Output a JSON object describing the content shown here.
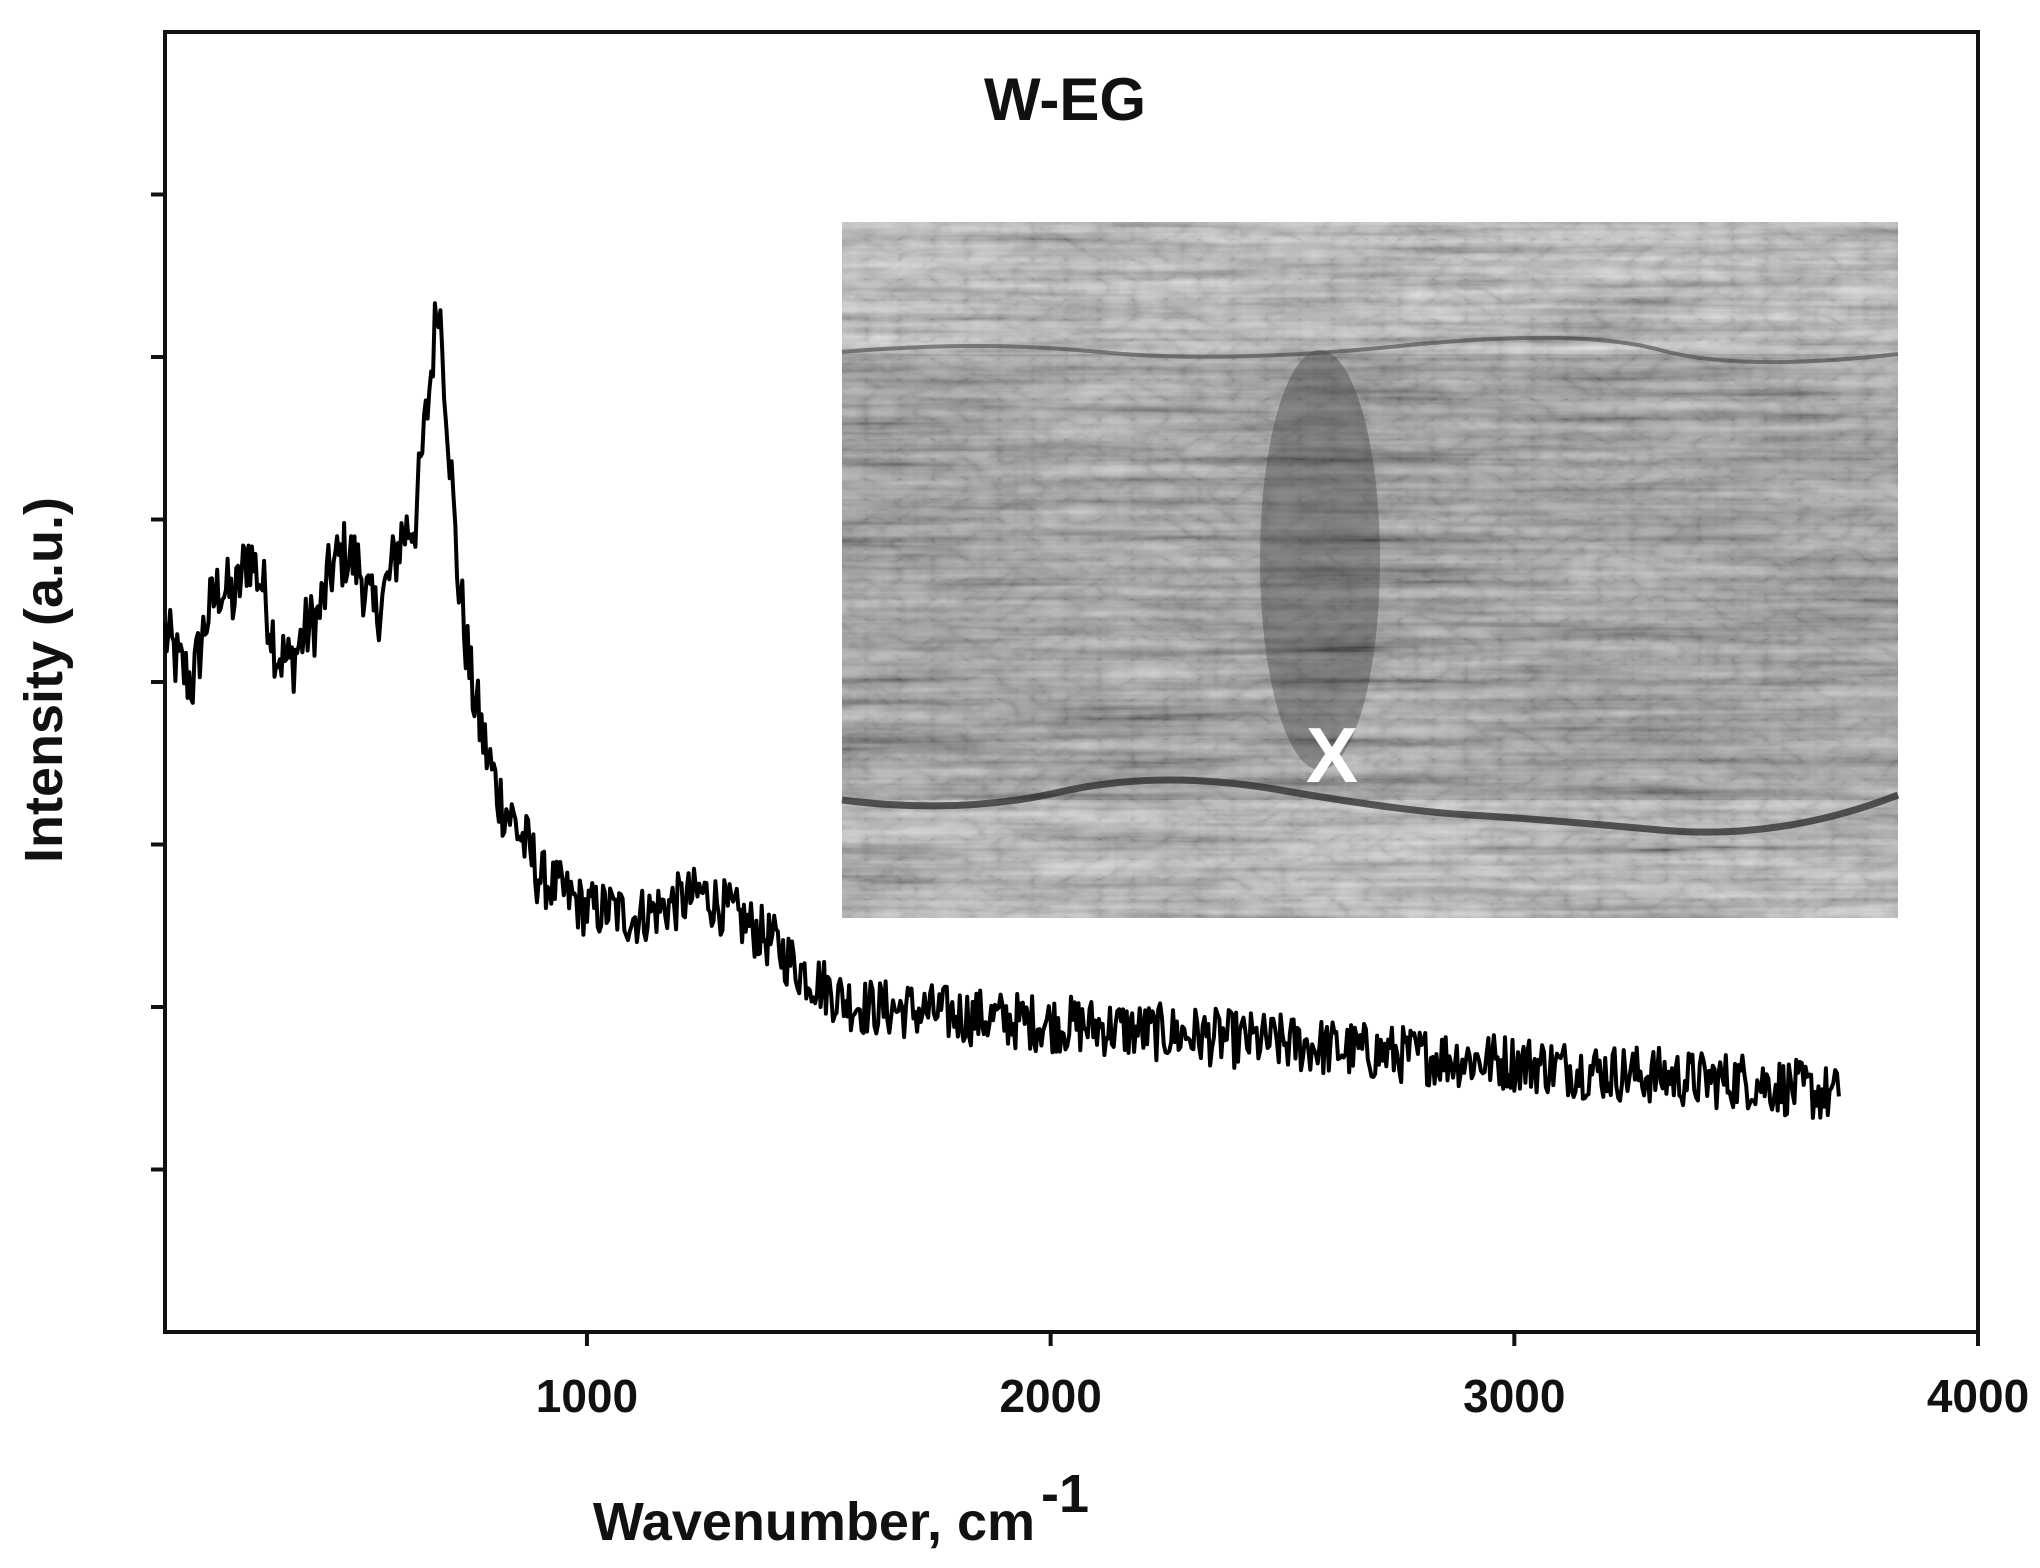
{
  "chart_data": {
    "type": "line",
    "title": "W-EG",
    "xlabel": "Wavenumber, cm",
    "xlabel_superscript": "-1",
    "ylabel": "Intensity (a.u.)",
    "xlim": [
      90,
      4000
    ],
    "ylim": [
      0,
      8
    ],
    "x_ticks": [
      1000,
      2000,
      3000,
      4000
    ],
    "y_ticks_labeled": false,
    "grid": false,
    "legend": "none",
    "line_color": "#000000",
    "series": [
      {
        "x": [
          90,
          120,
          150,
          180,
          210,
          240,
          270,
          300,
          330,
          360,
          390,
          420,
          450,
          480,
          510,
          540,
          570,
          600,
          630,
          660,
          680,
          700,
          720,
          750,
          780,
          810,
          850,
          900,
          950,
          1000,
          1050,
          1100,
          1150,
          1200,
          1250,
          1300,
          1350,
          1400,
          1450,
          1500,
          1550,
          1600,
          1700,
          1800,
          1900,
          2000,
          2100,
          2200,
          2300,
          2400,
          2500,
          2600,
          2700,
          2800,
          2900,
          3000,
          3100,
          3200,
          3300,
          3400,
          3500,
          3600,
          3700
        ],
        "y": [
          4.3,
          4.1,
          4.0,
          4.4,
          4.6,
          4.5,
          4.8,
          4.6,
          4.2,
          4.1,
          4.3,
          4.4,
          4.7,
          4.8,
          4.7,
          4.4,
          4.6,
          4.9,
          5.0,
          5.8,
          6.4,
          5.6,
          4.7,
          4.0,
          3.6,
          3.3,
          3.1,
          2.8,
          2.7,
          2.6,
          2.6,
          2.55,
          2.6,
          2.65,
          2.7,
          2.6,
          2.5,
          2.4,
          2.25,
          2.15,
          2.05,
          2.0,
          1.98,
          1.95,
          1.92,
          1.9,
          1.88,
          1.85,
          1.83,
          1.8,
          1.78,
          1.75,
          1.72,
          1.7,
          1.68,
          1.66,
          1.63,
          1.6,
          1.58,
          1.55,
          1.55,
          1.5,
          1.45
        ]
      }
    ],
    "inset": {
      "description_label": "X",
      "placement": "upper-right"
    }
  }
}
